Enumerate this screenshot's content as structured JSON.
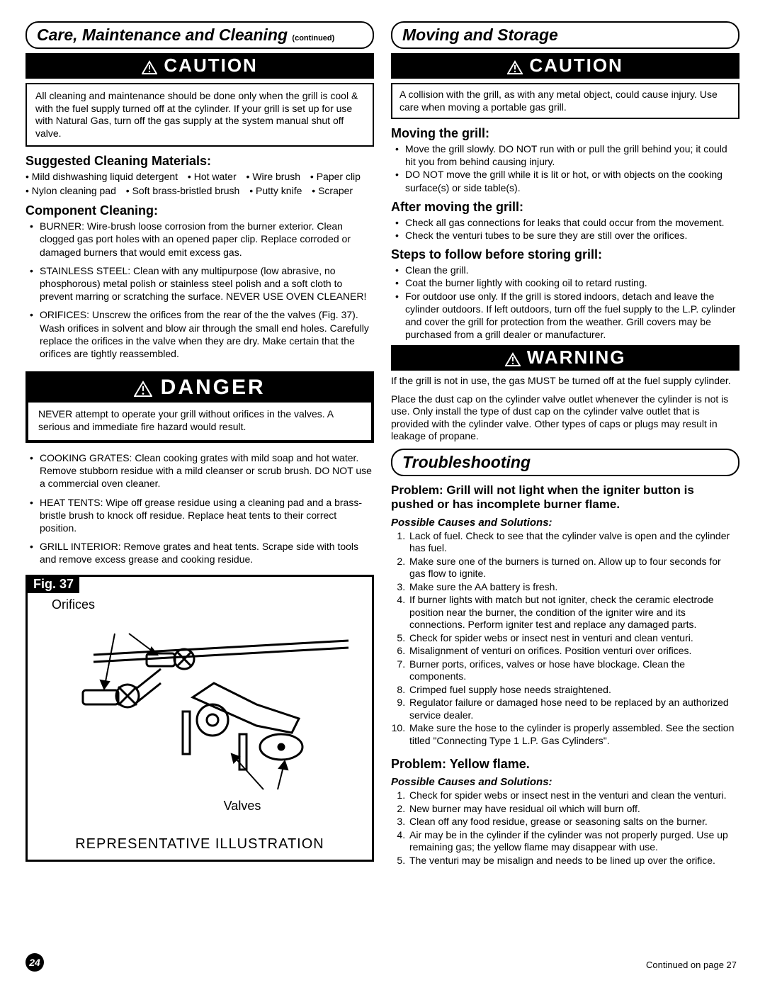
{
  "colors": {
    "text": "#000000",
    "bg": "#ffffff",
    "bar_bg": "#000000",
    "bar_fg": "#ffffff"
  },
  "page_number": "24",
  "continued_text": "Continued on page 27",
  "left": {
    "pill_title": "Care, Maintenance and Cleaning ",
    "pill_sub": "(continued)",
    "caution_label": "CAUTION",
    "caution_body": "All cleaning and maintenance should be done only when the grill is cool & with the fuel supply turned off at the cylinder. If your grill is set up for use with Natural Gas, turn off the gas supply at the system manual shut off valve.",
    "h_materials": "Suggested Cleaning Materials:",
    "materials": [
      "Mild dishwashing liquid detergent",
      "Hot water",
      "Wire brush",
      "Paper clip",
      "Nylon cleaning pad",
      "Soft brass-bristled brush",
      "Putty knife",
      "Scraper"
    ],
    "h_component": "Component Cleaning:",
    "component_items": [
      "BURNER: Wire-brush loose corrosion from the burner exterior. Clean clogged gas port holes with an opened paper clip. Replace corroded or damaged burners that would emit excess gas.",
      "STAINLESS STEEL: Clean with any multipurpose (low abrasive, no phosphorous) metal polish or stainless steel polish and a soft cloth to prevent marring or scratching the surface. NEVER USE OVEN CLEANER!",
      "ORIFICES: Unscrew the orifices from the rear of the the valves (Fig. 37). Wash orifices in solvent and blow air through the small end holes.  Carefully replace the orifices in the valve when they are dry.  Make certain that the orifices are tightly reassembled."
    ],
    "danger_label": "DANGER",
    "danger_body": "NEVER attempt to operate your grill without orifices in the valves. A serious and immediate fire hazard would result.",
    "after_danger_items": [
      "COOKING GRATES: Clean cooking grates with mild soap and hot water. Remove stubborn residue with a mild cleanser or scrub brush. DO NOT use a commercial oven cleaner.",
      "HEAT TENTS: Wipe off grease residue using a cleaning pad and a brass-bristle brush to knock off residue.  Replace heat tents to their correct position.",
      "GRILL INTERIOR: Remove grates and heat tents. Scrape side with tools and remove excess grease and cooking residue."
    ],
    "fig_tag": "Fig. 37",
    "fig_label_top": "Orifices",
    "fig_label_bottom": "Valves",
    "fig_caption": "REPRESENTATIVE ILLUSTRATION"
  },
  "right": {
    "pill_title": "Moving and Storage",
    "caution_label": "CAUTION",
    "caution_body": "A collision with the grill, as with any metal object, could cause injury. Use care when moving a portable gas grill.",
    "h_moving": "Moving the grill:",
    "moving_items": [
      "Move the grill slowly. DO NOT run with or pull the grill behind you; it could hit you from behind causing injury.",
      "DO NOT move the grill while it is lit or hot, or with objects on the cooking surface(s) or side table(s)."
    ],
    "h_after": "After moving the grill:",
    "after_items": [
      "Check all gas connections for leaks that could occur from the movement.",
      "Check the venturi tubes to be sure they are still over the orifices."
    ],
    "h_steps": "Steps to follow before storing grill:",
    "steps_items": [
      "Clean the grill.",
      "Coat the burner lightly with cooking oil to retard rusting.",
      "For outdoor use only. If the grill is stored indoors, detach and leave the cylinder outdoors. If left outdoors, turn off the fuel supply to the L.P. cylinder and cover the grill for protection from the weather. Grill covers may be purchased from a grill dealer or manufacturer."
    ],
    "warning_label": "WARNING",
    "warning_p1": "If the grill is not in use, the gas MUST be turned off at the fuel supply cylinder.",
    "warning_p2": "Place the dust cap on the cylinder valve outlet whenever the cylinder is not is use. Only install the type of dust cap on the cylinder valve outlet that is provided with the cylinder valve. Other types of caps or plugs may result in leakage of propane.",
    "trouble_title": "Troubleshooting",
    "problem1": "Problem: Grill will not light when the igniter button is pushed or has incomplete burner flame.",
    "pcs_label": "Possible Causes and Solutions:",
    "p1_items": [
      "Lack of fuel. Check to see that the cylinder valve is open and the cylinder has fuel.",
      "Make sure one of the burners is turned on.  Allow up to four seconds for gas flow to ignite.",
      "Make sure the AA battery is fresh.",
      "If burner lights with match but not igniter, check the ceramic electrode position near the burner, the condition of the igniter wire and its connections. Perform igniter test and replace any damaged parts.",
      "Check for spider webs or insect nest in venturi and clean venturi.",
      "Misalignment of venturi on orifices. Position venturi over orifices.",
      "Burner ports, orifices, valves or hose have blockage. Clean the components.",
      "Crimped fuel supply hose needs straightened.",
      "Regulator failure or damaged hose need to be replaced by an authorized service dealer.",
      "Make sure the hose to the cylinder is properly assembled.  See the section titled \"Connecting Type 1 L.P. Gas Cylinders\"."
    ],
    "problem2": "Problem: Yellow flame.",
    "p2_items": [
      "Check for spider webs or insect nest in the venturi and clean the venturi.",
      "New burner may have residual oil which will burn off.",
      "Clean off any food residue, grease or seasoning salts on the burner.",
      "Air may be in the cylinder if the cylinder was not properly purged.  Use up remaining gas; the yellow flame may disappear with use.",
      "The venturi may be misalign and needs to be lined up over the orifice."
    ]
  }
}
